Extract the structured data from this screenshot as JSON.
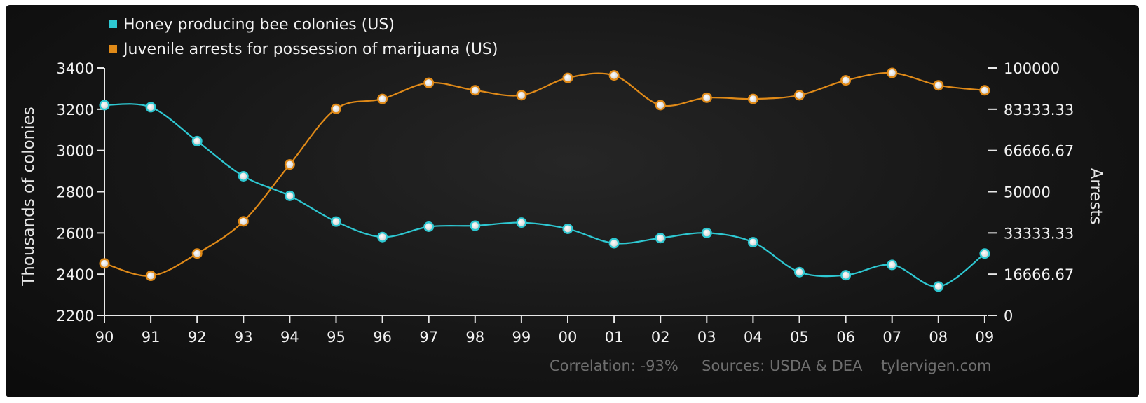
{
  "chart_data": {
    "type": "line",
    "categories": [
      "90",
      "91",
      "92",
      "93",
      "94",
      "95",
      "96",
      "97",
      "98",
      "99",
      "00",
      "01",
      "02",
      "03",
      "04",
      "05",
      "06",
      "07",
      "08",
      "09"
    ],
    "series": [
      {
        "name": "Honey producing bee colonies (US)",
        "axis": "left",
        "color": "#2ec8d2",
        "values": [
          3220,
          3210,
          3045,
          2875,
          2780,
          2655,
          2580,
          2630,
          2635,
          2650,
          2620,
          2550,
          2575,
          2600,
          2555,
          2410,
          2395,
          2445,
          2340,
          2500
        ]
      },
      {
        "name": "Juvenile arrests for possession of marijuana (US)",
        "axis": "right",
        "color": "#e08a18",
        "values": [
          21000,
          16000,
          25000,
          38000,
          61000,
          83500,
          87500,
          94000,
          91000,
          89000,
          96000,
          97000,
          85000,
          88000,
          87500,
          89000,
          95000,
          98000,
          93000,
          91000
        ]
      }
    ],
    "y_left": {
      "label": "Thousands of colonies",
      "min": 2200,
      "max": 3400,
      "ticks": [
        "3400",
        "3200",
        "3000",
        "2800",
        "2600",
        "2400",
        "2200"
      ]
    },
    "y_right": {
      "label": "Arrests",
      "min": 0,
      "max": 100000,
      "ticks": [
        "100000",
        "83333.33",
        "66666.67",
        "50000",
        "33333.33",
        "16666.67",
        "0"
      ]
    },
    "legend_position": "top-left",
    "grid": false,
    "footer": "Correlation: -93%     Sources: USDA & DEA    tylervigen.com"
  }
}
